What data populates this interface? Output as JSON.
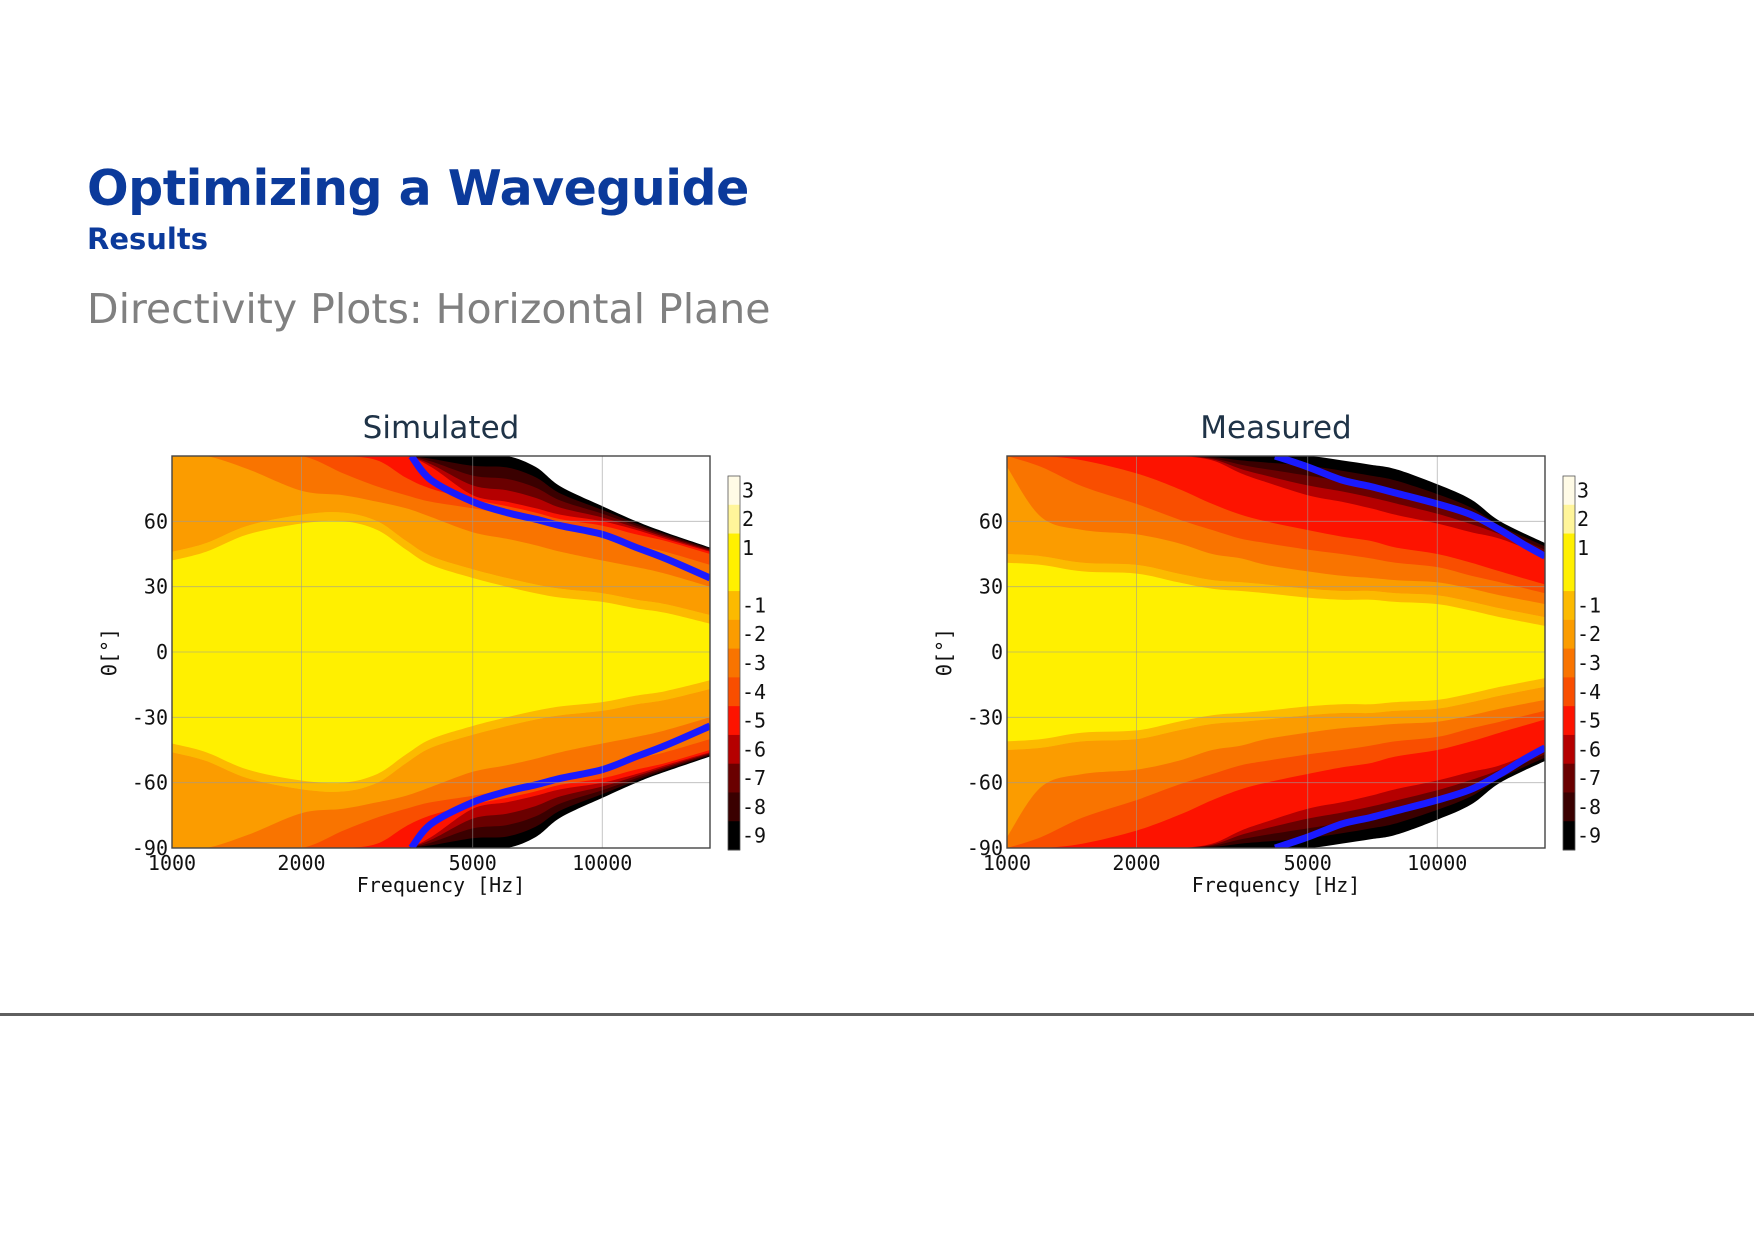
{
  "slide": {
    "title": "Optimizing a Waveguide",
    "subtitle": "Results",
    "section": "Directivity Plots: Horizontal Plane"
  },
  "colors": {
    "title": "#0b3a9b",
    "section": "#808080",
    "contour_line": "#1a1aff"
  },
  "colorbar": {
    "levels": [
      3,
      2,
      1,
      0,
      -1,
      -2,
      -3,
      -4,
      -5,
      -6,
      -7,
      -8,
      -9
    ],
    "tick_labels": [
      "3",
      "2",
      "1",
      "-1",
      "-2",
      "-3",
      "-4",
      "-5",
      "-6",
      "-7",
      "-8",
      "-9"
    ],
    "colors": [
      "#fffbe6",
      "#fff59a",
      "#fff000",
      "#fff000",
      "#fcba00",
      "#fb9c00",
      "#f97400",
      "#f94e00",
      "#fd1300",
      "#b50000",
      "#6a0000",
      "#3a0000",
      "#000000"
    ]
  },
  "chart_data": [
    {
      "type": "heatmap",
      "title": "Simulated",
      "xlabel": "Frequency [Hz]",
      "ylabel": "Θ[°]",
      "x_scale": "log",
      "xlim": [
        1000,
        17800
      ],
      "ylim": [
        -90,
        90
      ],
      "xticks": [
        1000,
        2000,
        5000,
        10000
      ],
      "xtick_labels": [
        "1000",
        "2000",
        "5000",
        "10000"
      ],
      "yticks": [
        60,
        30,
        0,
        -30,
        -60,
        -90
      ],
      "ytick_labels": [
        "60",
        "30",
        "0",
        "-30",
        "-60",
        "-90"
      ],
      "grid": true,
      "colorbar_range": [
        -9,
        3
      ],
      "contour_boundaries_deg": {
        "frequencies": [
          1000,
          1200,
          1500,
          2000,
          2500,
          3000,
          3500,
          4000,
          5000,
          6000,
          7000,
          8000,
          10000,
          12000,
          14000,
          17800
        ],
        "levels": {
          "-1": [
            46,
            50,
            58,
            63,
            64,
            60,
            51,
            44,
            38,
            34,
            31,
            29,
            27,
            24,
            22,
            17
          ],
          "-2": [
            90,
            90,
            84,
            74,
            72,
            69,
            66,
            62,
            55,
            52,
            49,
            46,
            42,
            39,
            36,
            30
          ],
          "-3": [
            90,
            90,
            90,
            90,
            82,
            76,
            72,
            69,
            66,
            63,
            60,
            57,
            53,
            49,
            46,
            40
          ],
          "-4": [
            90,
            90,
            90,
            90,
            90,
            88,
            80,
            75,
            70,
            67,
            64,
            61,
            58,
            54,
            51,
            45
          ],
          "-6": [
            90,
            90,
            90,
            90,
            90,
            90,
            90,
            85,
            72,
            69,
            66,
            63,
            60,
            56,
            52,
            46
          ],
          "-9": [
            90,
            90,
            90,
            90,
            90,
            90,
            90,
            90,
            90,
            90,
            85,
            76,
            67,
            60,
            55,
            48
          ]
        }
      },
      "minus6_line_deg": {
        "frequencies": [
          3600,
          4000,
          5000,
          6000,
          7000,
          8000,
          10000,
          12000,
          14000,
          17800
        ],
        "values": [
          90,
          79,
          69,
          64,
          61,
          58,
          54,
          48,
          43,
          34
        ]
      }
    },
    {
      "type": "heatmap",
      "title": "Measured",
      "xlabel": "Frequency [Hz]",
      "ylabel": "Θ[°]",
      "x_scale": "log",
      "xlim": [
        1000,
        17800
      ],
      "ylim": [
        -90,
        90
      ],
      "xticks": [
        1000,
        2000,
        5000,
        10000
      ],
      "xtick_labels": [
        "1000",
        "2000",
        "5000",
        "10000"
      ],
      "yticks": [
        60,
        30,
        0,
        -30,
        -60,
        -90
      ],
      "ytick_labels": [
        "60",
        "30",
        "0",
        "-30",
        "-60",
        "-90"
      ],
      "grid": true,
      "colorbar_range": [
        -9,
        3
      ],
      "contour_boundaries_deg": {
        "frequencies": [
          1000,
          1200,
          1500,
          2000,
          2500,
          3000,
          3500,
          4000,
          5000,
          6000,
          7000,
          8000,
          10000,
          12000,
          14000,
          17800
        ],
        "levels": {
          "-1": [
            45,
            44,
            41,
            40,
            36,
            33,
            32,
            31,
            29,
            28,
            28,
            27,
            26,
            23,
            20,
            16
          ],
          "-2": [
            85,
            62,
            56,
            54,
            50,
            45,
            43,
            40,
            37,
            35,
            34,
            33,
            32,
            29,
            26,
            22
          ],
          "-3": [
            90,
            85,
            76,
            68,
            61,
            56,
            52,
            50,
            47,
            45,
            43,
            41,
            39,
            35,
            32,
            27
          ],
          "-4": [
            90,
            90,
            88,
            82,
            75,
            68,
            63,
            60,
            56,
            53,
            51,
            48,
            45,
            41,
            37,
            31
          ],
          "-6": [
            90,
            90,
            90,
            90,
            90,
            88,
            82,
            78,
            72,
            69,
            66,
            63,
            59,
            55,
            52,
            44
          ],
          "-9": [
            90,
            90,
            90,
            90,
            90,
            90,
            90,
            90,
            90,
            88,
            86,
            84,
            77,
            70,
            60,
            50
          ]
        }
      },
      "minus6_line_deg": {
        "frequencies": [
          4200,
          5000,
          6000,
          7000,
          8000,
          10000,
          12000,
          14000,
          16000,
          17800
        ],
        "values": [
          90,
          85,
          79,
          76,
          73,
          68,
          63,
          56,
          49,
          44
        ]
      }
    }
  ]
}
